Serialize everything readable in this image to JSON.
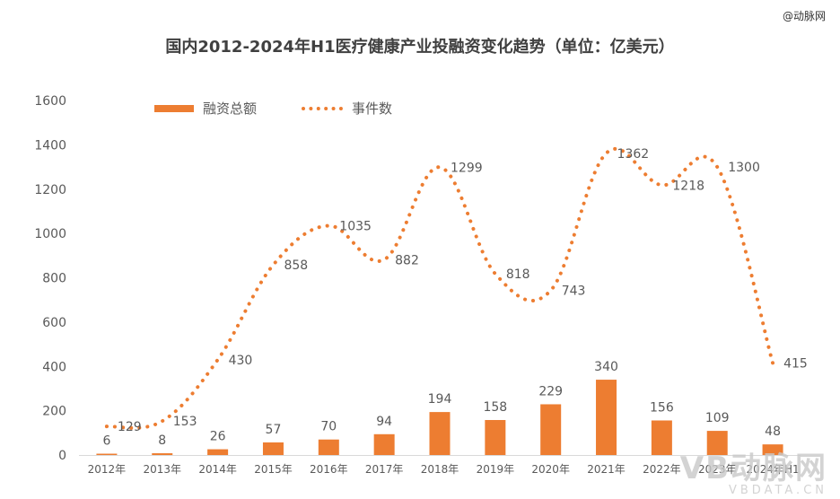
{
  "watermark_top": "@动脉网",
  "watermark_bottom": {
    "logo": "VB动脉网",
    "url": "VBDATA.CN"
  },
  "chart_data": {
    "type": "bar",
    "title": "国内2012-2024年H1医疗健康产业投融资变化趋势（单位：亿美元）",
    "categories": [
      "2012年",
      "2013年",
      "2014年",
      "2015年",
      "2016年",
      "2017年",
      "2018年",
      "2019年",
      "2020年",
      "2021年",
      "2022年",
      "2023年",
      "2024年H1"
    ],
    "series": [
      {
        "name": "融资总额",
        "type": "bar",
        "values": [
          6,
          8,
          26,
          57,
          70,
          94,
          194,
          158,
          229,
          340,
          156,
          109,
          48
        ],
        "color": "#ED7D31"
      },
      {
        "name": "事件数",
        "type": "line",
        "style": "dotted",
        "values": [
          129,
          153,
          430,
          858,
          1035,
          882,
          1299,
          818,
          743,
          1362,
          1218,
          1300,
          415
        ],
        "color": "#ED7D31"
      }
    ],
    "y_ticks": [
      0,
      200,
      400,
      600,
      800,
      1000,
      1200,
      1400,
      1600
    ],
    "ylim": [
      0,
      1600
    ],
    "xlabel": "",
    "ylabel": "",
    "grid": false,
    "legend_position": "top-left"
  },
  "colors": {
    "accent": "#ED7D31",
    "text": "#595959",
    "title": "#404040",
    "axis": "#d9d9d9"
  }
}
